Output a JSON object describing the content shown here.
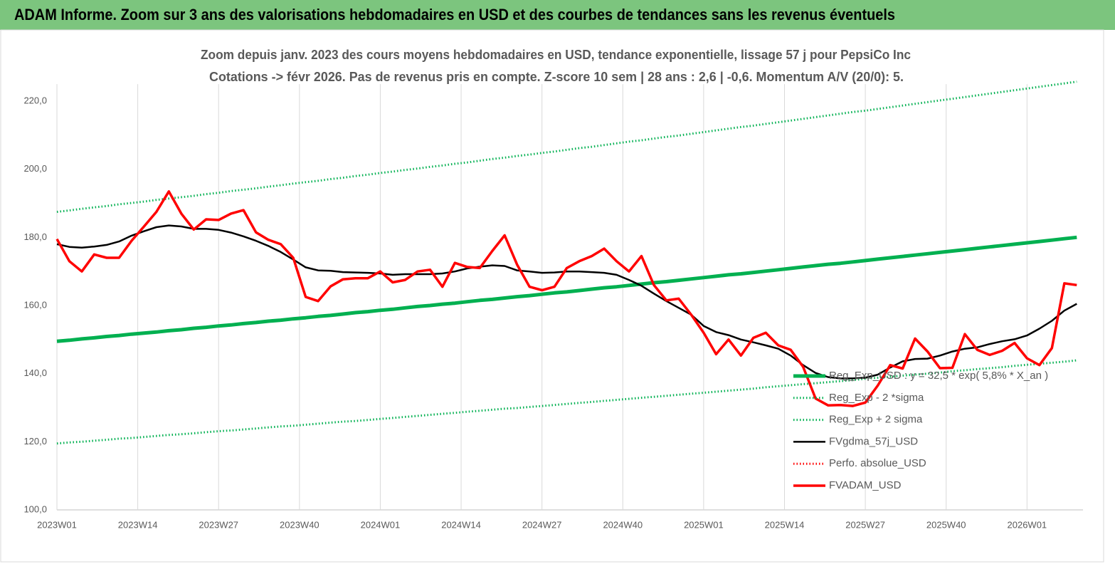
{
  "chart_data": {
    "type": "line",
    "title": "ADAM Informe. Zoom sur 3 ans des valorisations hebdomadaires en USD et des courbes de tendances sans les revenus éventuels",
    "subtitle": [
      "Zoom depuis janv. 2023 des cours moyens hebdomadaires en USD, tendance exponentielle, lissage 57 j pour PepsiCo Inc",
      "Cotations -> févr 2026.  Pas de revenus pris en compte. Z-score 10 sem  | 28 ans : 2,6 | -0,6. Momentum A/V (20/0): 5."
    ],
    "x": [
      0,
      2,
      4,
      6,
      8,
      10,
      12,
      14,
      16,
      18,
      20,
      22,
      24,
      26,
      28,
      30,
      32,
      34,
      36,
      38,
      40,
      42,
      44,
      46,
      48,
      50,
      52,
      54,
      56,
      58,
      60,
      62,
      64,
      66,
      68,
      70,
      72,
      74,
      76,
      78,
      80,
      82,
      84,
      86,
      88,
      90,
      92,
      94,
      96,
      98,
      100,
      102,
      104,
      106,
      108,
      110,
      112,
      114,
      116,
      118,
      120,
      122,
      124,
      126,
      128,
      130,
      132,
      134,
      136,
      138,
      140,
      142,
      144,
      146,
      148,
      150,
      152,
      154,
      156,
      158,
      160,
      162,
      164
    ],
    "xlim": [
      0,
      165
    ],
    "xticks": [
      {
        "value": 0,
        "label": "2023W01"
      },
      {
        "value": 13,
        "label": "2023W14"
      },
      {
        "value": 26,
        "label": "2023W27"
      },
      {
        "value": 39,
        "label": "2023W40"
      },
      {
        "value": 52,
        "label": "2024W01"
      },
      {
        "value": 65,
        "label": "2024W14"
      },
      {
        "value": 78,
        "label": "2024W27"
      },
      {
        "value": 91,
        "label": "2024W40"
      },
      {
        "value": 104,
        "label": "2025W01"
      },
      {
        "value": 117,
        "label": "2025W14"
      },
      {
        "value": 130,
        "label": "2025W27"
      },
      {
        "value": 143,
        "label": "2025W40"
      },
      {
        "value": 156,
        "label": "2026W01"
      }
    ],
    "ylim": [
      100,
      225
    ],
    "yticks": [
      {
        "value": 100,
        "label": "100,0"
      },
      {
        "value": 120,
        "label": "120,0"
      },
      {
        "value": 140,
        "label": "140,0"
      },
      {
        "value": 160,
        "label": "160,0"
      },
      {
        "value": 180,
        "label": "180,0"
      },
      {
        "value": 200,
        "label": "200,0"
      },
      {
        "value": 220,
        "label": "220,0"
      }
    ],
    "grid": "x",
    "legend": "right",
    "series": [
      {
        "name": "Reg_Exp_USD : y = 32,5 * exp( 5,8% * X_an )",
        "color": "#00b050",
        "style": "thick",
        "values": [
          149.5,
          149.8,
          150.2,
          150.5,
          150.9,
          151.2,
          151.6,
          151.9,
          152.2,
          152.6,
          152.9,
          153.3,
          153.6,
          154.0,
          154.3,
          154.7,
          155.0,
          155.4,
          155.7,
          156.1,
          156.4,
          156.8,
          157.1,
          157.5,
          157.9,
          158.2,
          158.6,
          158.9,
          159.3,
          159.7,
          160.0,
          160.4,
          160.7,
          161.1,
          161.5,
          161.8,
          162.2,
          162.6,
          162.9,
          163.3,
          163.7,
          164.0,
          164.4,
          164.8,
          165.2,
          165.5,
          165.9,
          166.3,
          166.7,
          167.0,
          167.4,
          167.8,
          168.2,
          168.6,
          169.0,
          169.3,
          169.7,
          170.1,
          170.5,
          170.9,
          171.3,
          171.7,
          172.1,
          172.4,
          172.8,
          173.2,
          173.6,
          174.0,
          174.4,
          174.8,
          175.2,
          175.6,
          176.0,
          176.4,
          176.8,
          177.2,
          177.6,
          178.0,
          178.4,
          178.8,
          179.2,
          179.6,
          180.0
        ]
      },
      {
        "name": "Reg_Exp - 2 *sigma",
        "color": "#00b050",
        "style": "dotted",
        "values": [
          119.5,
          119.8,
          120.0,
          120.3,
          120.6,
          120.9,
          121.1,
          121.4,
          121.7,
          122.0,
          122.2,
          122.5,
          122.8,
          123.1,
          123.3,
          123.6,
          123.9,
          124.2,
          124.5,
          124.7,
          125.0,
          125.3,
          125.6,
          125.9,
          126.1,
          126.4,
          126.7,
          127.0,
          127.3,
          127.6,
          127.9,
          128.2,
          128.5,
          128.8,
          129.1,
          129.4,
          129.7,
          129.9,
          130.2,
          130.5,
          130.8,
          131.1,
          131.4,
          131.7,
          132.0,
          132.3,
          132.6,
          132.9,
          133.2,
          133.5,
          133.8,
          134.1,
          134.4,
          134.7,
          135.0,
          135.3,
          135.6,
          136.0,
          136.3,
          136.6,
          136.9,
          137.2,
          137.5,
          137.8,
          138.1,
          138.5,
          138.8,
          139.1,
          139.4,
          139.7,
          140.0,
          140.3,
          140.7,
          141.0,
          141.3,
          141.6,
          141.9,
          142.3,
          142.6,
          142.9,
          143.2,
          143.5,
          143.9
        ]
      },
      {
        "name": "Reg_Exp + 2 sigma",
        "color": "#00b050",
        "style": "dotted",
        "values": [
          187.5,
          187.9,
          188.4,
          188.8,
          189.2,
          189.7,
          190.1,
          190.5,
          191.0,
          191.4,
          191.8,
          192.2,
          192.7,
          193.1,
          193.6,
          194.0,
          194.4,
          194.9,
          195.3,
          195.8,
          196.2,
          196.6,
          197.1,
          197.5,
          198.0,
          198.4,
          198.9,
          199.3,
          199.8,
          200.2,
          200.7,
          201.1,
          201.6,
          202.0,
          202.5,
          203.0,
          203.4,
          203.9,
          204.3,
          204.8,
          205.2,
          205.7,
          206.2,
          206.6,
          207.1,
          207.6,
          208.1,
          208.5,
          209.0,
          209.5,
          209.9,
          210.4,
          210.9,
          211.4,
          211.9,
          212.4,
          212.8,
          213.3,
          213.8,
          214.3,
          214.8,
          215.3,
          215.8,
          216.3,
          216.8,
          217.2,
          217.7,
          218.2,
          218.7,
          219.2,
          219.7,
          220.2,
          220.7,
          221.2,
          221.7,
          222.2,
          222.7,
          223.2,
          223.7,
          224.2,
          224.7,
          225.2,
          225.7
        ]
      },
      {
        "name": "FVgdma_57j_USD",
        "color": "#000000",
        "style": "solid",
        "values": [
          178,
          177.2,
          177,
          177.3,
          177.8,
          178.8,
          180.5,
          181.8,
          183,
          183.5,
          183.2,
          182.5,
          182.5,
          182.2,
          181.4,
          180.3,
          179,
          177.5,
          175.7,
          173.5,
          171.2,
          170.3,
          170.2,
          169.8,
          169.7,
          169.6,
          169.4,
          169,
          169.2,
          169.2,
          169.2,
          169.4,
          170,
          170.9,
          171.4,
          171.8,
          171.6,
          170.3,
          170,
          169.6,
          169.7,
          170,
          170,
          169.8,
          169.6,
          169,
          167.5,
          165.8,
          163.5,
          161.3,
          159.3,
          157.3,
          154,
          152.2,
          151.3,
          150,
          149.2,
          148.3,
          147.3,
          145.3,
          142.5,
          140.2,
          139,
          138.6,
          138.6,
          138.8,
          139.7,
          141.8,
          143.6,
          144.3,
          144.4,
          145.3,
          146.5,
          147.3,
          147.7,
          148.7,
          149.5,
          150.1,
          151.2,
          153.2,
          155.5,
          158.5,
          160.5
        ]
      },
      {
        "name": "Perfo. absolue_USD",
        "color": "#ff0000",
        "style": "dotted"
      },
      {
        "name": "FVADAM_USD",
        "color": "#ff0000",
        "style": "bold",
        "values": [
          179.5,
          173,
          170,
          175,
          174,
          174,
          179,
          183.2,
          187.5,
          193.5,
          187,
          182.3,
          185.3,
          185.1,
          187,
          188,
          181.5,
          179.3,
          178,
          174,
          162.5,
          161.3,
          165.6,
          167.7,
          168,
          168,
          170,
          166.8,
          167.5,
          170,
          170.5,
          165.5,
          172.5,
          171.3,
          171,
          176,
          180.6,
          172,
          165.5,
          164.5,
          165.5,
          171,
          173,
          174.5,
          176.7,
          173,
          170,
          174.5,
          166,
          161.5,
          162,
          157.3,
          152,
          145.7,
          150,
          145.3,
          150.5,
          152,
          148.3,
          147,
          142,
          132.7,
          130.7,
          130.8,
          130.5,
          131.5,
          136.5,
          142.5,
          141.5,
          150.3,
          146.5,
          141.6,
          141.7,
          151.6,
          147,
          145.5,
          146.7,
          149,
          144.5,
          142.5,
          147.5,
          166.5,
          166
        ]
      }
    ]
  }
}
